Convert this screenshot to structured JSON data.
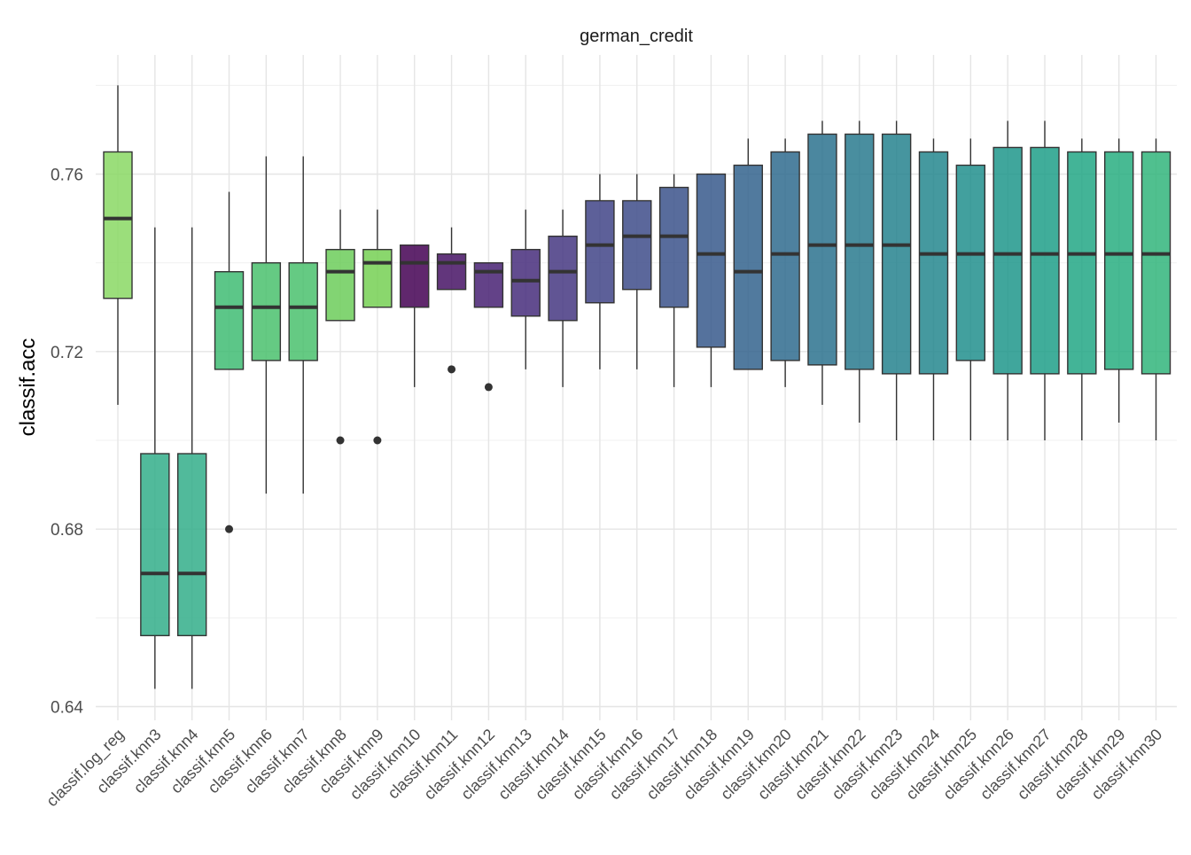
{
  "chart_data": {
    "type": "boxplot",
    "title": "german_credit",
    "xlabel": "",
    "ylabel": "classif.acc",
    "ylim": [
      0.635,
      0.782
    ],
    "yticks": [
      0.64,
      0.68,
      0.72,
      0.76
    ],
    "ytick_labels": [
      "0.64",
      "0.68",
      "0.72",
      "0.76"
    ],
    "grid": true,
    "legend": "none",
    "categories": [
      "classif.log_reg",
      "classif.knn3",
      "classif.knn4",
      "classif.knn5",
      "classif.knn6",
      "classif.knn7",
      "classif.knn8",
      "classif.knn9",
      "classif.knn10",
      "classif.knn11",
      "classif.knn12",
      "classif.knn13",
      "classif.knn14",
      "classif.knn15",
      "classif.knn16",
      "classif.knn17",
      "classif.knn18",
      "classif.knn19",
      "classif.knn20",
      "classif.knn21",
      "classif.knn22",
      "classif.knn23",
      "classif.knn24",
      "classif.knn25",
      "classif.knn26",
      "classif.knn27",
      "classif.knn28",
      "classif.knn29",
      "classif.knn30"
    ],
    "boxes": [
      {
        "label": "classif.log_reg",
        "min": 0.708,
        "q1": 0.732,
        "median": 0.75,
        "q3": 0.765,
        "max": 0.78,
        "outliers": [],
        "color": "#8ad864"
      },
      {
        "label": "classif.knn3",
        "min": 0.644,
        "q1": 0.656,
        "median": 0.67,
        "q3": 0.697,
        "max": 0.748,
        "outliers": [],
        "color": "#33ae8a"
      },
      {
        "label": "classif.knn4",
        "min": 0.644,
        "q1": 0.656,
        "median": 0.67,
        "q3": 0.697,
        "max": 0.748,
        "outliers": [],
        "color": "#33ae8a"
      },
      {
        "label": "classif.knn5",
        "min": 0.716,
        "q1": 0.716,
        "median": 0.73,
        "q3": 0.738,
        "max": 0.756,
        "outliers": [
          0.68
        ],
        "color": "#3fbc73"
      },
      {
        "label": "classif.knn6",
        "min": 0.688,
        "q1": 0.718,
        "median": 0.73,
        "q3": 0.74,
        "max": 0.764,
        "outliers": [],
        "color": "#4ac16d"
      },
      {
        "label": "classif.knn7",
        "min": 0.688,
        "q1": 0.718,
        "median": 0.73,
        "q3": 0.74,
        "max": 0.764,
        "outliers": [],
        "color": "#4ac16d"
      },
      {
        "label": "classif.knn8",
        "min": 0.727,
        "q1": 0.727,
        "median": 0.738,
        "q3": 0.743,
        "max": 0.752,
        "outliers": [
          0.7
        ],
        "color": "#6ccd5a"
      },
      {
        "label": "classif.knn9",
        "min": 0.73,
        "q1": 0.73,
        "median": 0.74,
        "q3": 0.743,
        "max": 0.752,
        "outliers": [
          0.7
        ],
        "color": "#75d054"
      },
      {
        "label": "classif.knn10",
        "min": 0.712,
        "q1": 0.73,
        "median": 0.74,
        "q3": 0.744,
        "max": 0.744,
        "outliers": [],
        "color": "#440154"
      },
      {
        "label": "classif.knn11",
        "min": 0.734,
        "q1": 0.734,
        "median": 0.74,
        "q3": 0.742,
        "max": 0.748,
        "outliers": [
          0.716
        ],
        "color": "#471365"
      },
      {
        "label": "classif.knn12",
        "min": 0.73,
        "q1": 0.73,
        "median": 0.738,
        "q3": 0.74,
        "max": 0.74,
        "outliers": [
          0.712
        ],
        "color": "#482173"
      },
      {
        "label": "classif.knn13",
        "min": 0.716,
        "q1": 0.728,
        "median": 0.736,
        "q3": 0.743,
        "max": 0.752,
        "outliers": [],
        "color": "#472d7b"
      },
      {
        "label": "classif.knn14",
        "min": 0.712,
        "q1": 0.727,
        "median": 0.738,
        "q3": 0.746,
        "max": 0.752,
        "outliers": [],
        "color": "#453781"
      },
      {
        "label": "classif.knn15",
        "min": 0.716,
        "q1": 0.731,
        "median": 0.744,
        "q3": 0.754,
        "max": 0.76,
        "outliers": [],
        "color": "#414487"
      },
      {
        "label": "classif.knn16",
        "min": 0.716,
        "q1": 0.734,
        "median": 0.746,
        "q3": 0.754,
        "max": 0.76,
        "outliers": [],
        "color": "#3e4c8a"
      },
      {
        "label": "classif.knn17",
        "min": 0.712,
        "q1": 0.73,
        "median": 0.746,
        "q3": 0.757,
        "max": 0.76,
        "outliers": [],
        "color": "#3b528b"
      },
      {
        "label": "classif.knn18",
        "min": 0.712,
        "q1": 0.721,
        "median": 0.742,
        "q3": 0.76,
        "max": 0.76,
        "outliers": [],
        "color": "#37598c"
      },
      {
        "label": "classif.knn19",
        "min": 0.716,
        "q1": 0.716,
        "median": 0.738,
        "q3": 0.762,
        "max": 0.768,
        "outliers": [],
        "color": "#33638d"
      },
      {
        "label": "classif.knn20",
        "min": 0.712,
        "q1": 0.718,
        "median": 0.742,
        "q3": 0.765,
        "max": 0.768,
        "outliers": [],
        "color": "#2f6b8e"
      },
      {
        "label": "classif.knn21",
        "min": 0.708,
        "q1": 0.717,
        "median": 0.744,
        "q3": 0.769,
        "max": 0.772,
        "outliers": [],
        "color": "#2c728e"
      },
      {
        "label": "classif.knn22",
        "min": 0.704,
        "q1": 0.716,
        "median": 0.744,
        "q3": 0.769,
        "max": 0.772,
        "outliers": [],
        "color": "#297a8e"
      },
      {
        "label": "classif.knn23",
        "min": 0.7,
        "q1": 0.715,
        "median": 0.744,
        "q3": 0.769,
        "max": 0.772,
        "outliers": [],
        "color": "#26828e"
      },
      {
        "label": "classif.knn24",
        "min": 0.7,
        "q1": 0.715,
        "median": 0.742,
        "q3": 0.765,
        "max": 0.768,
        "outliers": [],
        "color": "#24878e"
      },
      {
        "label": "classif.knn25",
        "min": 0.7,
        "q1": 0.718,
        "median": 0.742,
        "q3": 0.762,
        "max": 0.768,
        "outliers": [],
        "color": "#218f8d"
      },
      {
        "label": "classif.knn26",
        "min": 0.7,
        "q1": 0.715,
        "median": 0.742,
        "q3": 0.766,
        "max": 0.772,
        "outliers": [],
        "color": "#1f978b"
      },
      {
        "label": "classif.knn27",
        "min": 0.7,
        "q1": 0.715,
        "median": 0.742,
        "q3": 0.766,
        "max": 0.772,
        "outliers": [],
        "color": "#1f9f88"
      },
      {
        "label": "classif.knn28",
        "min": 0.7,
        "q1": 0.715,
        "median": 0.742,
        "q3": 0.765,
        "max": 0.768,
        "outliers": [],
        "color": "#22a785"
      },
      {
        "label": "classif.knn29",
        "min": 0.704,
        "q1": 0.716,
        "median": 0.742,
        "q3": 0.765,
        "max": 0.768,
        "outliers": [],
        "color": "#28ae80"
      },
      {
        "label": "classif.knn30",
        "min": 0.7,
        "q1": 0.715,
        "median": 0.742,
        "q3": 0.765,
        "max": 0.768,
        "outliers": [],
        "color": "#31b57b"
      }
    ]
  }
}
